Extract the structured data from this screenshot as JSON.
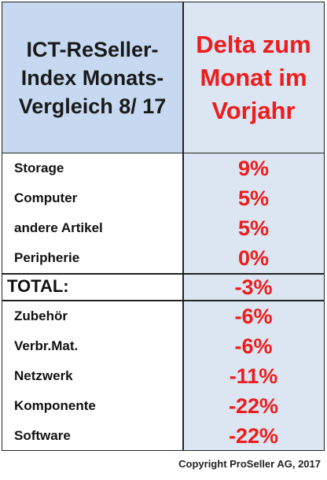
{
  "colors": {
    "header_left_bg": "#c6d9f1",
    "right_col_bg": "#dce6f2",
    "value_red": "#ee1c1c"
  },
  "header": {
    "left": "ICT-ReSeller-\nIndex Monats-\nVergleich 8/ 17",
    "right": "Delta zum\nMonat im\nVorjahr"
  },
  "chart_data": {
    "type": "table",
    "columns": [
      "ICT-ReSeller-Index Monats-Vergleich 8/ 17",
      "Delta zum Monat im Vorjahr"
    ],
    "rows_top": [
      {
        "label": "Storage",
        "value": "9%"
      },
      {
        "label": "Computer",
        "value": "5%"
      },
      {
        "label": "andere Artikel",
        "value": "5%"
      },
      {
        "label": "Peripherie",
        "value": "0%"
      }
    ],
    "total": {
      "label": "TOTAL:",
      "value": "-3%"
    },
    "rows_bottom": [
      {
        "label": "Zubehör",
        "value": "-6%"
      },
      {
        "label": "Verbr.Mat.",
        "value": "-6%"
      },
      {
        "label": "Netzwerk",
        "value": "-11%"
      },
      {
        "label": "Komponente",
        "value": "-22%"
      },
      {
        "label": "Software",
        "value": "-22%"
      }
    ]
  },
  "footer": {
    "copyright": "Copyright ProSeller AG, 2017"
  }
}
